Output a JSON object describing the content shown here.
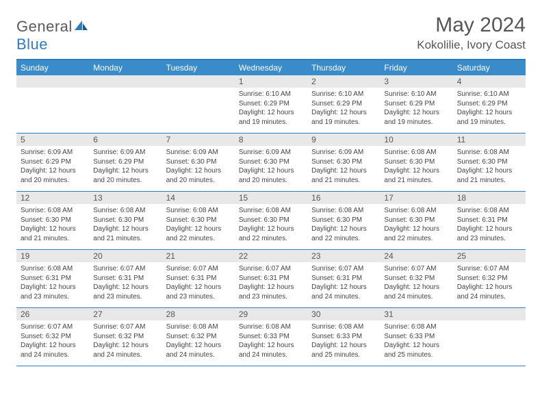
{
  "logo": {
    "text1": "General",
    "text2": "Blue"
  },
  "title": "May 2024",
  "location": "Kokolilie, Ivory Coast",
  "colors": {
    "header_bg": "#3a8bc9",
    "header_text": "#ffffff",
    "border": "#2f7bbf",
    "daynum_bg": "#e8e8e8",
    "text": "#444444",
    "logo_gray": "#5a5a5a",
    "logo_blue": "#2f7bbf"
  },
  "fonts": {
    "title_size": 30,
    "location_size": 17,
    "dayheader_size": 12,
    "daynum_size": 12,
    "content_size": 10
  },
  "day_names": [
    "Sunday",
    "Monday",
    "Tuesday",
    "Wednesday",
    "Thursday",
    "Friday",
    "Saturday"
  ],
  "weeks": [
    [
      {
        "n": "",
        "sr": "",
        "ss": "",
        "dl": ""
      },
      {
        "n": "",
        "sr": "",
        "ss": "",
        "dl": ""
      },
      {
        "n": "",
        "sr": "",
        "ss": "",
        "dl": ""
      },
      {
        "n": "1",
        "sr": "Sunrise: 6:10 AM",
        "ss": "Sunset: 6:29 PM",
        "dl": "Daylight: 12 hours and 19 minutes."
      },
      {
        "n": "2",
        "sr": "Sunrise: 6:10 AM",
        "ss": "Sunset: 6:29 PM",
        "dl": "Daylight: 12 hours and 19 minutes."
      },
      {
        "n": "3",
        "sr": "Sunrise: 6:10 AM",
        "ss": "Sunset: 6:29 PM",
        "dl": "Daylight: 12 hours and 19 minutes."
      },
      {
        "n": "4",
        "sr": "Sunrise: 6:10 AM",
        "ss": "Sunset: 6:29 PM",
        "dl": "Daylight: 12 hours and 19 minutes."
      }
    ],
    [
      {
        "n": "5",
        "sr": "Sunrise: 6:09 AM",
        "ss": "Sunset: 6:29 PM",
        "dl": "Daylight: 12 hours and 20 minutes."
      },
      {
        "n": "6",
        "sr": "Sunrise: 6:09 AM",
        "ss": "Sunset: 6:29 PM",
        "dl": "Daylight: 12 hours and 20 minutes."
      },
      {
        "n": "7",
        "sr": "Sunrise: 6:09 AM",
        "ss": "Sunset: 6:30 PM",
        "dl": "Daylight: 12 hours and 20 minutes."
      },
      {
        "n": "8",
        "sr": "Sunrise: 6:09 AM",
        "ss": "Sunset: 6:30 PM",
        "dl": "Daylight: 12 hours and 20 minutes."
      },
      {
        "n": "9",
        "sr": "Sunrise: 6:09 AM",
        "ss": "Sunset: 6:30 PM",
        "dl": "Daylight: 12 hours and 21 minutes."
      },
      {
        "n": "10",
        "sr": "Sunrise: 6:08 AM",
        "ss": "Sunset: 6:30 PM",
        "dl": "Daylight: 12 hours and 21 minutes."
      },
      {
        "n": "11",
        "sr": "Sunrise: 6:08 AM",
        "ss": "Sunset: 6:30 PM",
        "dl": "Daylight: 12 hours and 21 minutes."
      }
    ],
    [
      {
        "n": "12",
        "sr": "Sunrise: 6:08 AM",
        "ss": "Sunset: 6:30 PM",
        "dl": "Daylight: 12 hours and 21 minutes."
      },
      {
        "n": "13",
        "sr": "Sunrise: 6:08 AM",
        "ss": "Sunset: 6:30 PM",
        "dl": "Daylight: 12 hours and 21 minutes."
      },
      {
        "n": "14",
        "sr": "Sunrise: 6:08 AM",
        "ss": "Sunset: 6:30 PM",
        "dl": "Daylight: 12 hours and 22 minutes."
      },
      {
        "n": "15",
        "sr": "Sunrise: 6:08 AM",
        "ss": "Sunset: 6:30 PM",
        "dl": "Daylight: 12 hours and 22 minutes."
      },
      {
        "n": "16",
        "sr": "Sunrise: 6:08 AM",
        "ss": "Sunset: 6:30 PM",
        "dl": "Daylight: 12 hours and 22 minutes."
      },
      {
        "n": "17",
        "sr": "Sunrise: 6:08 AM",
        "ss": "Sunset: 6:30 PM",
        "dl": "Daylight: 12 hours and 22 minutes."
      },
      {
        "n": "18",
        "sr": "Sunrise: 6:08 AM",
        "ss": "Sunset: 6:31 PM",
        "dl": "Daylight: 12 hours and 23 minutes."
      }
    ],
    [
      {
        "n": "19",
        "sr": "Sunrise: 6:08 AM",
        "ss": "Sunset: 6:31 PM",
        "dl": "Daylight: 12 hours and 23 minutes."
      },
      {
        "n": "20",
        "sr": "Sunrise: 6:07 AM",
        "ss": "Sunset: 6:31 PM",
        "dl": "Daylight: 12 hours and 23 minutes."
      },
      {
        "n": "21",
        "sr": "Sunrise: 6:07 AM",
        "ss": "Sunset: 6:31 PM",
        "dl": "Daylight: 12 hours and 23 minutes."
      },
      {
        "n": "22",
        "sr": "Sunrise: 6:07 AM",
        "ss": "Sunset: 6:31 PM",
        "dl": "Daylight: 12 hours and 23 minutes."
      },
      {
        "n": "23",
        "sr": "Sunrise: 6:07 AM",
        "ss": "Sunset: 6:31 PM",
        "dl": "Daylight: 12 hours and 24 minutes."
      },
      {
        "n": "24",
        "sr": "Sunrise: 6:07 AM",
        "ss": "Sunset: 6:32 PM",
        "dl": "Daylight: 12 hours and 24 minutes."
      },
      {
        "n": "25",
        "sr": "Sunrise: 6:07 AM",
        "ss": "Sunset: 6:32 PM",
        "dl": "Daylight: 12 hours and 24 minutes."
      }
    ],
    [
      {
        "n": "26",
        "sr": "Sunrise: 6:07 AM",
        "ss": "Sunset: 6:32 PM",
        "dl": "Daylight: 12 hours and 24 minutes."
      },
      {
        "n": "27",
        "sr": "Sunrise: 6:07 AM",
        "ss": "Sunset: 6:32 PM",
        "dl": "Daylight: 12 hours and 24 minutes."
      },
      {
        "n": "28",
        "sr": "Sunrise: 6:08 AM",
        "ss": "Sunset: 6:32 PM",
        "dl": "Daylight: 12 hours and 24 minutes."
      },
      {
        "n": "29",
        "sr": "Sunrise: 6:08 AM",
        "ss": "Sunset: 6:33 PM",
        "dl": "Daylight: 12 hours and 24 minutes."
      },
      {
        "n": "30",
        "sr": "Sunrise: 6:08 AM",
        "ss": "Sunset: 6:33 PM",
        "dl": "Daylight: 12 hours and 25 minutes."
      },
      {
        "n": "31",
        "sr": "Sunrise: 6:08 AM",
        "ss": "Sunset: 6:33 PM",
        "dl": "Daylight: 12 hours and 25 minutes."
      },
      {
        "n": "",
        "sr": "",
        "ss": "",
        "dl": ""
      }
    ]
  ]
}
